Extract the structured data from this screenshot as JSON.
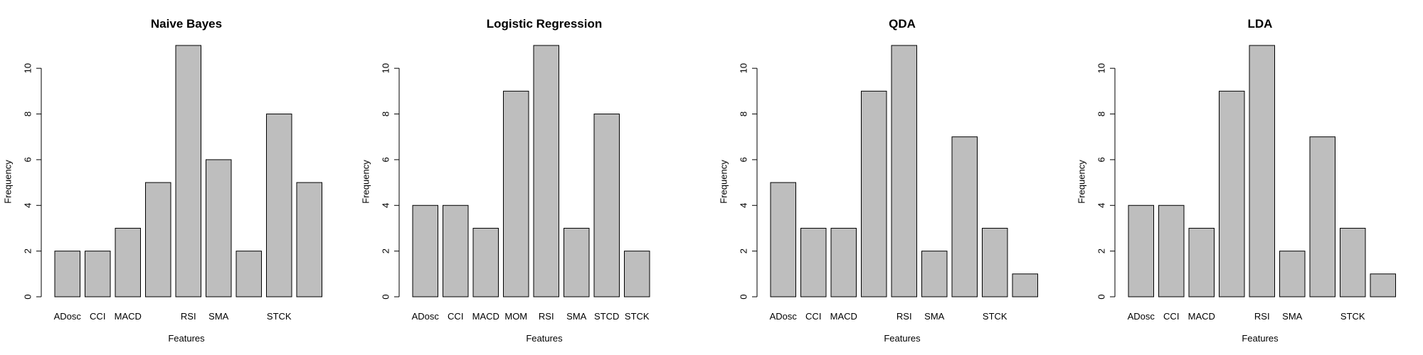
{
  "chart_data": [
    {
      "type": "bar",
      "title": "Naive Bayes",
      "xlabel": "Features",
      "ylabel": "Frequency",
      "ylim": [
        0,
        11
      ],
      "yticks": [
        0,
        2,
        4,
        6,
        8,
        10
      ],
      "bar_color": "#bebebe",
      "categories": [
        "ADosc",
        "CCI",
        "MACD",
        "",
        "RSI",
        "SMA",
        "",
        "STCK",
        ""
      ],
      "values": [
        2,
        2,
        3,
        5,
        11,
        6,
        2,
        8,
        5
      ]
    },
    {
      "type": "bar",
      "title": "Logistic Regression",
      "xlabel": "Features",
      "ylabel": "Frequency",
      "ylim": [
        0,
        11
      ],
      "yticks": [
        0,
        2,
        4,
        6,
        8,
        10
      ],
      "bar_color": "#bebebe",
      "categories": [
        "ADosc",
        "CCI",
        "MACD",
        "MOM",
        "RSI",
        "SMA",
        "STCD",
        "STCK"
      ],
      "values": [
        4,
        4,
        3,
        9,
        11,
        3,
        8,
        2
      ]
    },
    {
      "type": "bar",
      "title": "QDA",
      "xlabel": "Features",
      "ylabel": "Frequency",
      "ylim": [
        0,
        11
      ],
      "yticks": [
        0,
        2,
        4,
        6,
        8,
        10
      ],
      "bar_color": "#bebebe",
      "categories": [
        "ADosc",
        "CCI",
        "MACD",
        "",
        "RSI",
        "SMA",
        "",
        "STCK",
        ""
      ],
      "values": [
        5,
        3,
        3,
        9,
        11,
        2,
        7,
        3,
        1
      ]
    },
    {
      "type": "bar",
      "title": "LDA",
      "xlabel": "Features",
      "ylabel": "Frequency",
      "ylim": [
        0,
        11
      ],
      "yticks": [
        0,
        2,
        4,
        6,
        8,
        10
      ],
      "bar_color": "#bebebe",
      "categories": [
        "ADosc",
        "CCI",
        "MACD",
        "",
        "RSI",
        "SMA",
        "",
        "STCK",
        ""
      ],
      "values": [
        4,
        4,
        3,
        9,
        11,
        2,
        7,
        3,
        1
      ]
    }
  ]
}
